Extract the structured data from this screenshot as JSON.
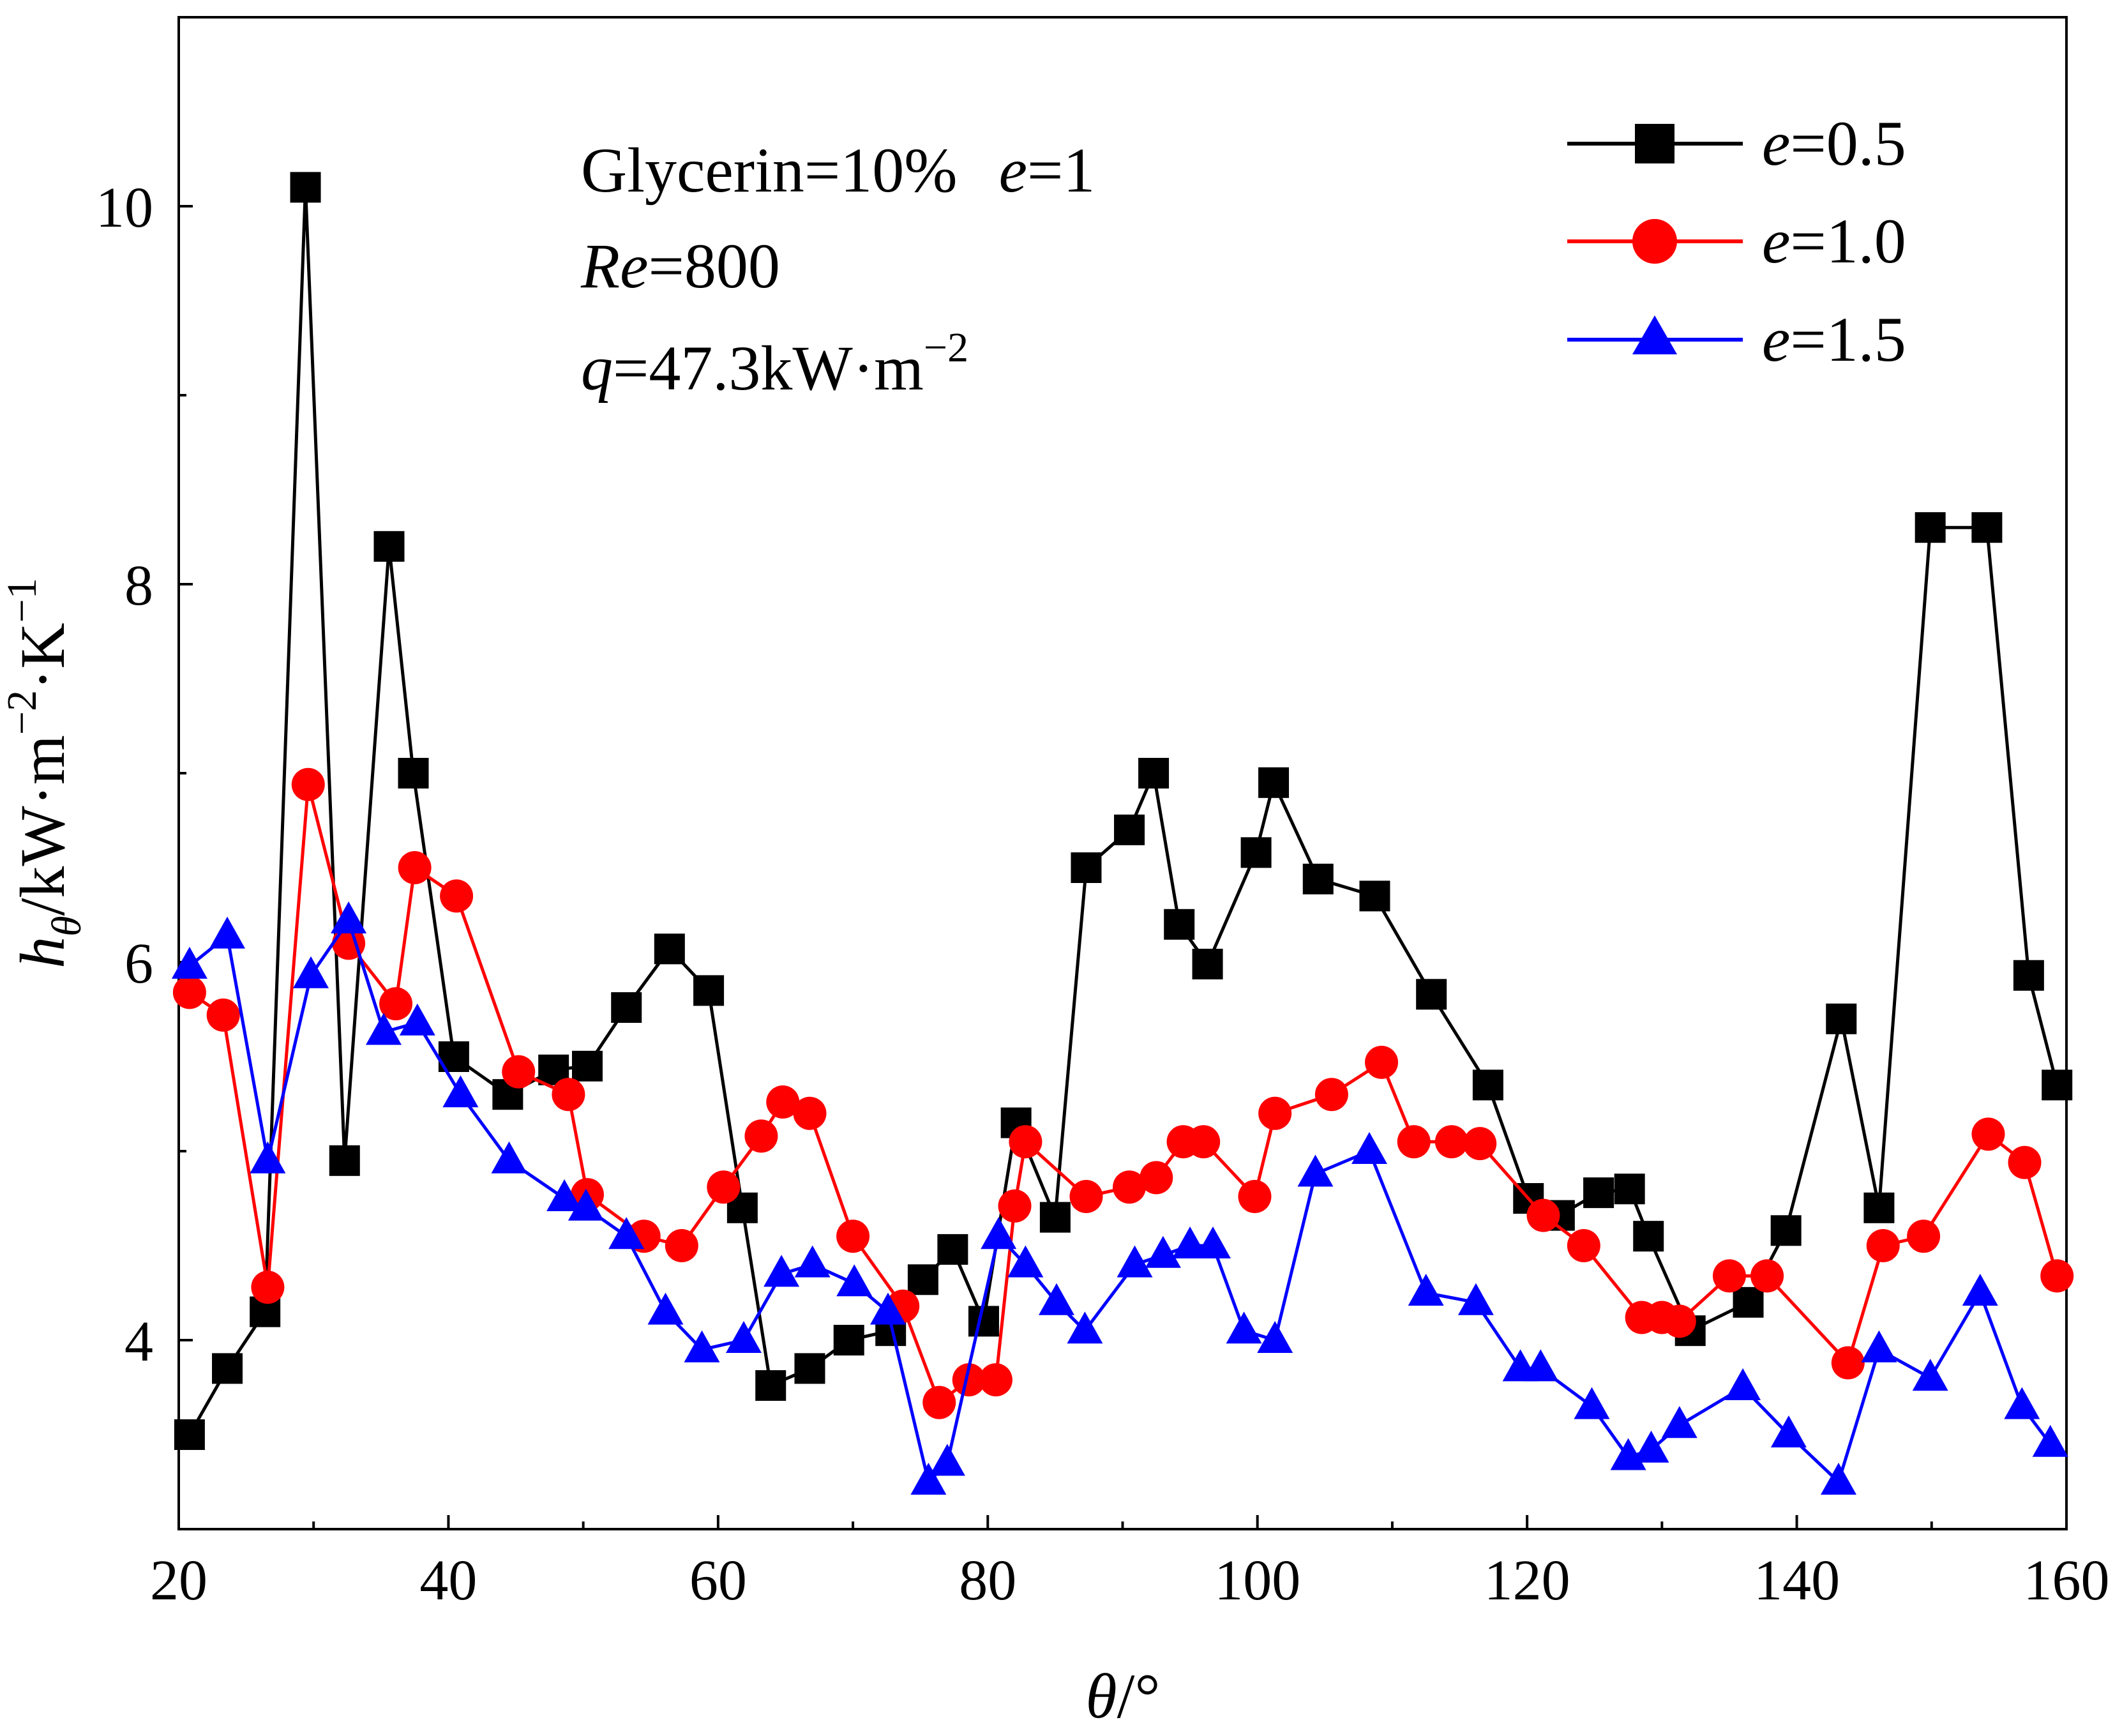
{
  "chart_data": {
    "type": "line",
    "xlabel_var": "θ",
    "xlabel_unit": "/°",
    "ylabel_var": "h",
    "ylabel_sub": "θ",
    "ylabel_unit": "/kW·m",
    "ylabel_exp1": "−2",
    "ylabel_mid": "·K",
    "ylabel_exp2": "−1",
    "xlim": [
      20,
      160
    ],
    "ylim": [
      3.0,
      11.0
    ],
    "xticks": [
      20,
      40,
      60,
      80,
      100,
      120,
      140,
      160
    ],
    "yticks": [
      4,
      6,
      8,
      10
    ],
    "annotation": {
      "line1_text": "Glycerin=10%",
      "line1_var": "e",
      "line1_val": "=1",
      "line2_var": "Re",
      "line2_val": "=800",
      "line3_var": "q",
      "line3_val": "=47.3kW·m",
      "line3_exp": "−2"
    },
    "series": [
      {
        "name": "e=0.5",
        "legend_var": "e",
        "legend_val": "=0.5",
        "color": "#000000",
        "marker": "square",
        "x": [
          20.8,
          23.6,
          26.4,
          29.4,
          32.3,
          35.6,
          37.4,
          40.4,
          44.4,
          47.8,
          50.3,
          53.2,
          56.4,
          59.3,
          61.8,
          63.9,
          66.8,
          69.7,
          72.8,
          75.2,
          77.4,
          79.7,
          82.1,
          85.0,
          87.3,
          90.5,
          92.3,
          94.2,
          96.3,
          99.9,
          101.2,
          104.5,
          108.7,
          112.9,
          117.1,
          120.1,
          122.4,
          125.3,
          127.6,
          129.0,
          132.1,
          136.4,
          139.2,
          143.3,
          146.1,
          149.9,
          154.1,
          157.2,
          159.3
        ],
        "y": [
          3.5,
          3.85,
          4.15,
          10.1,
          4.95,
          8.2,
          7.0,
          5.5,
          5.3,
          5.43,
          5.45,
          5.76,
          6.07,
          5.85,
          4.7,
          3.76,
          3.85,
          4.0,
          4.05,
          4.32,
          4.48,
          4.1,
          5.15,
          4.65,
          6.5,
          6.7,
          7.0,
          6.2,
          5.99,
          6.58,
          6.95,
          6.44,
          6.35,
          5.83,
          5.35,
          4.75,
          4.66,
          4.78,
          4.8,
          4.55,
          4.05,
          4.2,
          4.58,
          5.7,
          4.7,
          8.3,
          8.3,
          5.93,
          5.35
        ]
      },
      {
        "name": "e=1.0",
        "legend_var": "e",
        "legend_val": "=1.0",
        "color": "#ff0000",
        "marker": "circle",
        "x": [
          20.8,
          23.3,
          26.6,
          29.6,
          32.6,
          36.1,
          37.5,
          40.6,
          45.2,
          48.9,
          50.3,
          54.5,
          57.3,
          60.4,
          63.2,
          64.8,
          66.8,
          70.0,
          73.7,
          76.4,
          78.6,
          80.6,
          82.0,
          82.8,
          87.3,
          90.5,
          92.5,
          94.5,
          96.0,
          99.8,
          101.3,
          105.5,
          109.2,
          111.6,
          114.4,
          116.5,
          121.2,
          124.2,
          128.5,
          130.0,
          131.3,
          135.0,
          137.8,
          143.8,
          146.4,
          149.4,
          154.2,
          156.9,
          159.3
        ],
        "y": [
          5.84,
          5.72,
          4.28,
          6.94,
          6.1,
          5.78,
          6.5,
          6.35,
          5.42,
          5.3,
          4.77,
          4.55,
          4.5,
          4.81,
          5.08,
          5.26,
          5.2,
          4.55,
          4.18,
          3.67,
          3.79,
          3.79,
          4.71,
          5.05,
          4.76,
          4.81,
          4.86,
          5.05,
          5.05,
          4.76,
          5.2,
          5.3,
          5.47,
          5.05,
          5.05,
          5.04,
          4.66,
          4.5,
          4.12,
          4.12,
          4.1,
          4.34,
          4.34,
          3.88,
          4.5,
          4.55,
          5.09,
          4.94,
          4.34
        ]
      },
      {
        "name": "e=1.5",
        "legend_var": "e",
        "legend_val": "=1.5",
        "color": "#0000ff",
        "marker": "triangle",
        "x": [
          20.8,
          23.6,
          26.6,
          29.8,
          32.6,
          35.2,
          37.7,
          40.9,
          44.5,
          48.6,
          50.2,
          53.2,
          56.1,
          58.8,
          61.9,
          64.7,
          67.0,
          70.1,
          72.6,
          75.6,
          77.0,
          80.8,
          82.8,
          85.1,
          87.2,
          90.9,
          93.0,
          95.0,
          96.7,
          99.0,
          101.3,
          104.3,
          108.3,
          112.5,
          116.2,
          119.5,
          121.0,
          124.8,
          127.5,
          129.2,
          131.3,
          136.0,
          139.4,
          143.1,
          146.1,
          149.9,
          153.6,
          156.7,
          158.8
        ],
        "y": [
          5.98,
          6.14,
          4.95,
          5.93,
          6.22,
          5.63,
          5.68,
          5.3,
          4.95,
          4.75,
          4.7,
          4.55,
          4.15,
          3.95,
          4.0,
          4.35,
          4.4,
          4.3,
          4.15,
          3.25,
          3.35,
          4.55,
          4.4,
          4.2,
          4.05,
          4.4,
          4.45,
          4.5,
          4.5,
          4.05,
          4.0,
          4.88,
          5.0,
          4.25,
          4.2,
          3.85,
          3.85,
          3.65,
          3.38,
          3.42,
          3.55,
          3.75,
          3.5,
          3.25,
          3.95,
          3.8,
          4.25,
          3.65,
          3.45
        ]
      }
    ]
  }
}
